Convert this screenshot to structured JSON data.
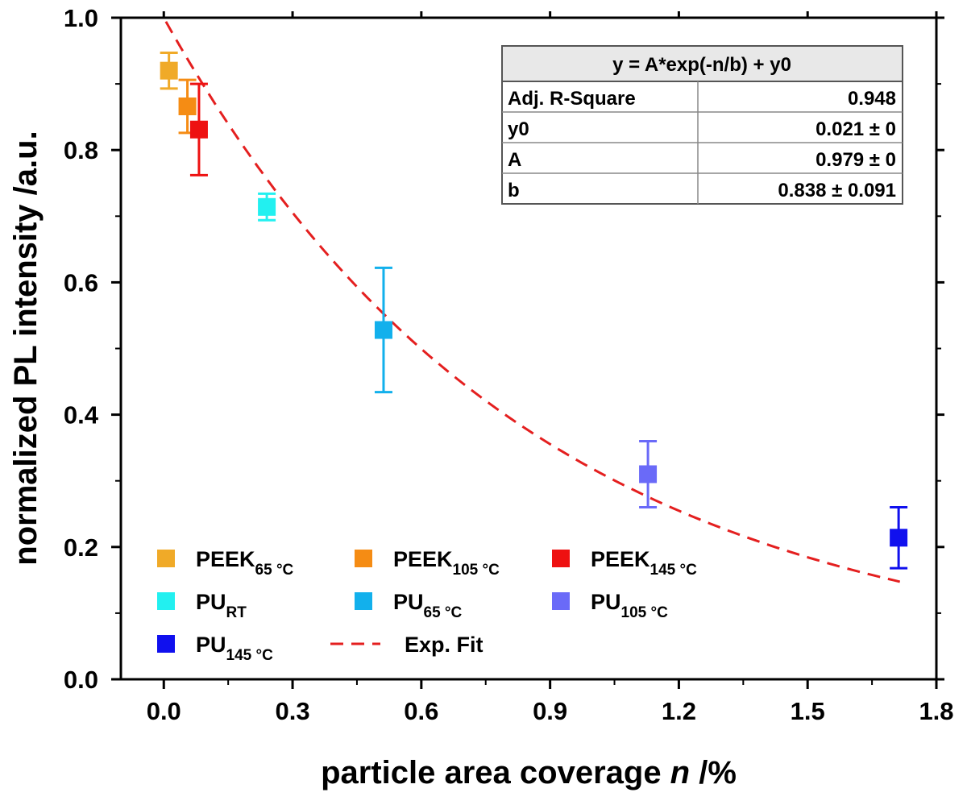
{
  "chart_data": {
    "type": "scatter",
    "xlabel": {
      "main": "particle area coverage ",
      "italic": "n",
      "unit": " /%"
    },
    "ylabel": "normalized PL intensity /a.u.",
    "xlim": [
      -0.1,
      1.8
    ],
    "ylim": [
      0.0,
      1.0
    ],
    "xticks": [
      "0.0",
      "0.3",
      "0.6",
      "0.9",
      "1.2",
      "1.5",
      "1.8"
    ],
    "xtick_values": [
      0.0,
      0.3,
      0.6,
      0.9,
      1.2,
      1.5,
      1.8
    ],
    "yticks": [
      "0.0",
      "0.2",
      "0.4",
      "0.6",
      "0.8",
      "1.0"
    ],
    "ytick_values": [
      0.0,
      0.2,
      0.4,
      0.6,
      0.8,
      1.0
    ],
    "series": [
      {
        "name": "PEEK",
        "sub": "65 °C",
        "color": "#f0aa28",
        "x": 0.012,
        "y": 0.92,
        "err": 0.027
      },
      {
        "name": "PEEK",
        "sub": "105 °C",
        "color": "#f58c14",
        "x": 0.055,
        "y": 0.866,
        "err": 0.04
      },
      {
        "name": "PEEK",
        "sub": "145 °C",
        "color": "#ee1111",
        "x": 0.082,
        "y": 0.831,
        "err": 0.069
      },
      {
        "name": "PU",
        "sub": "RT",
        "color": "#22f0f0",
        "x": 0.24,
        "y": 0.714,
        "err": 0.02
      },
      {
        "name": "PU",
        "sub": "65 °C",
        "color": "#12b0ec",
        "x": 0.512,
        "y": 0.528,
        "err": 0.094
      },
      {
        "name": "PU",
        "sub": "105 °C",
        "color": "#6a6af8",
        "x": 1.128,
        "y": 0.31,
        "err": 0.05
      },
      {
        "name": "PU",
        "sub": "145 °C",
        "color": "#1010ee",
        "x": 1.712,
        "y": 0.214,
        "err": 0.046
      }
    ],
    "fit": {
      "name": "Exp. Fit",
      "color": "#e41f1f",
      "A": 0.979,
      "b": 0.838,
      "y0": 0.021,
      "x_range": [
        0.005,
        1.715
      ]
    },
    "fit_table": {
      "equation": "y = A*exp(-n/b) + y0",
      "rows": [
        {
          "label": "Adj. R-Square",
          "value": "0.948"
        },
        {
          "label": "y0",
          "value": "0.021 ± 0"
        },
        {
          "label": "A",
          "value": "0.979 ± 0"
        },
        {
          "label": "b",
          "value": "0.838 ± 0.091"
        }
      ]
    }
  }
}
